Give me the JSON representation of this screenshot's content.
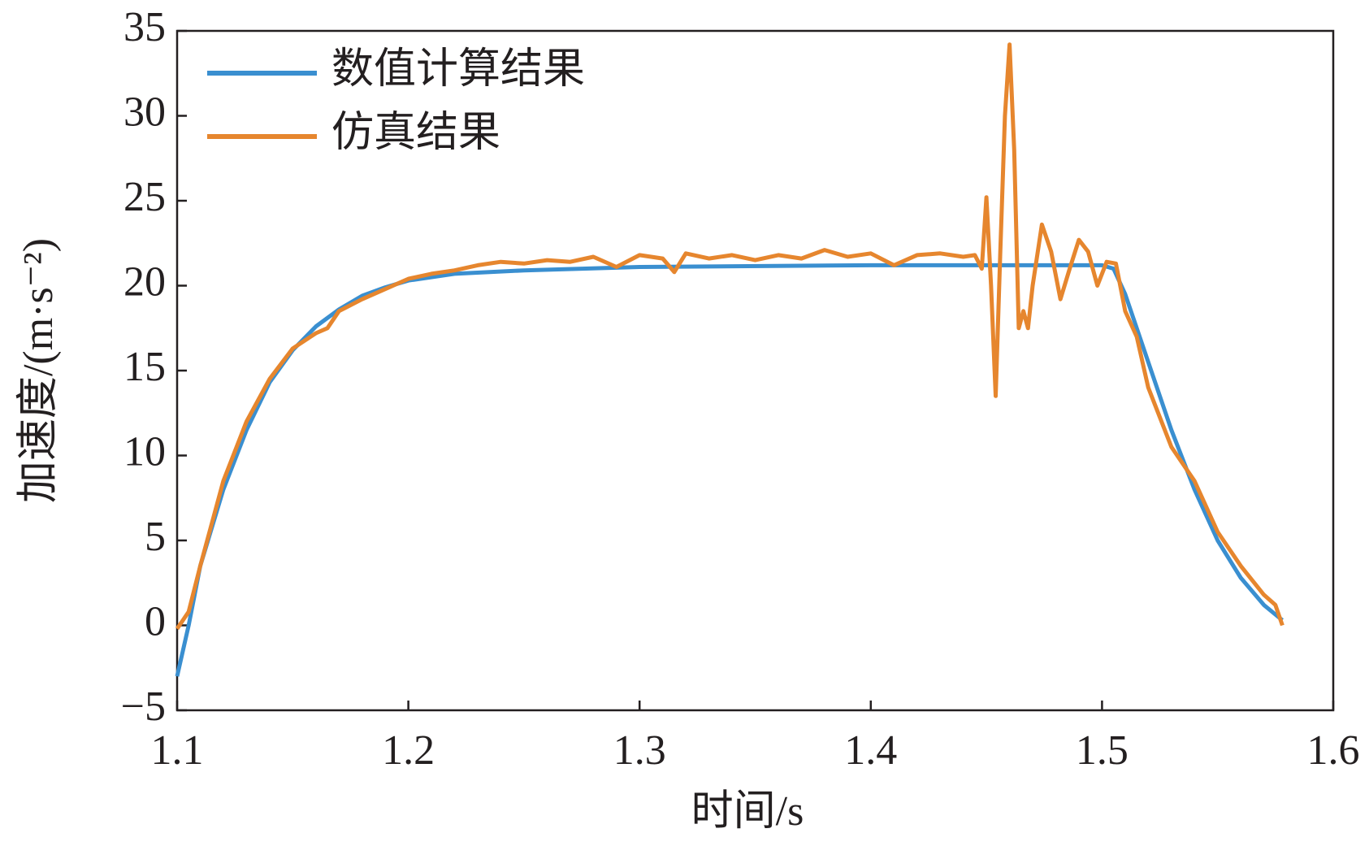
{
  "chart_data": {
    "type": "line",
    "xlabel": "时间/s",
    "ylabel": "加速度/(m·s⁻²)",
    "xlim": [
      1.1,
      1.6
    ],
    "xticks": [
      1.1,
      1.2,
      1.3,
      1.4,
      1.5,
      1.6
    ],
    "ylim": [
      -5,
      35
    ],
    "yticks": [
      {
        "value": -5,
        "label": "−5"
      },
      0,
      5,
      10,
      15,
      20,
      25,
      30,
      35
    ],
    "legend": "upper left",
    "series": [
      {
        "name": "数值计算结果",
        "color": "#3a8fd0",
        "x": [
          1.1,
          1.105,
          1.11,
          1.12,
          1.13,
          1.14,
          1.15,
          1.16,
          1.17,
          1.18,
          1.19,
          1.2,
          1.22,
          1.25,
          1.3,
          1.4,
          1.5,
          1.505,
          1.51,
          1.52,
          1.53,
          1.54,
          1.55,
          1.56,
          1.57,
          1.578
        ],
        "values": [
          -3,
          0,
          3.5,
          8,
          11.5,
          14.3,
          16.2,
          17.6,
          18.6,
          19.4,
          19.9,
          20.3,
          20.7,
          20.9,
          21.1,
          21.2,
          21.2,
          21.0,
          19.5,
          15.5,
          11.5,
          8,
          5,
          2.8,
          1.2,
          0.3
        ]
      },
      {
        "name": "仿真结果",
        "color": "#e6862e",
        "x": [
          1.1,
          1.105,
          1.11,
          1.12,
          1.13,
          1.14,
          1.15,
          1.16,
          1.165,
          1.17,
          1.18,
          1.19,
          1.2,
          1.21,
          1.22,
          1.23,
          1.24,
          1.25,
          1.26,
          1.27,
          1.28,
          1.29,
          1.3,
          1.31,
          1.315,
          1.32,
          1.33,
          1.34,
          1.35,
          1.36,
          1.37,
          1.38,
          1.39,
          1.4,
          1.41,
          1.42,
          1.43,
          1.44,
          1.445,
          1.448,
          1.45,
          1.452,
          1.454,
          1.456,
          1.458,
          1.46,
          1.462,
          1.464,
          1.466,
          1.468,
          1.47,
          1.474,
          1.478,
          1.482,
          1.486,
          1.49,
          1.494,
          1.498,
          1.502,
          1.506,
          1.51,
          1.515,
          1.52,
          1.53,
          1.54,
          1.55,
          1.56,
          1.57,
          1.575,
          1.578
        ],
        "values": [
          -0.2,
          0.8,
          3.5,
          8.5,
          12,
          14.5,
          16.3,
          17.2,
          17.5,
          18.5,
          19.2,
          19.8,
          20.4,
          20.7,
          20.9,
          21.2,
          21.4,
          21.3,
          21.5,
          21.4,
          21.7,
          21.1,
          21.8,
          21.6,
          20.8,
          21.9,
          21.6,
          21.8,
          21.5,
          21.8,
          21.6,
          22.1,
          21.7,
          21.9,
          21.2,
          21.8,
          21.9,
          21.7,
          21.8,
          21.0,
          25.2,
          20.0,
          13.5,
          22.0,
          30,
          34.2,
          28,
          17.5,
          18.5,
          17.5,
          20,
          23.6,
          22,
          19.2,
          21,
          22.7,
          22,
          20,
          21.4,
          21.3,
          18.5,
          17,
          14,
          10.5,
          8.5,
          5.5,
          3.5,
          1.8,
          1.2,
          0
        ]
      }
    ]
  }
}
